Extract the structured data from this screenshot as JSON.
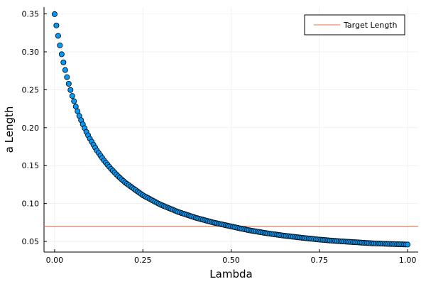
{
  "chart_data": {
    "type": "scatter",
    "title": "",
    "xlabel": "Lambda",
    "ylabel": "a Length",
    "xlim": [
      -0.03,
      1.03
    ],
    "ylim": [
      0.036,
      0.359
    ],
    "x_ticks": [
      0.0,
      0.25,
      0.5,
      0.75,
      1.0
    ],
    "x_tick_labels": [
      "0.00",
      "0.25",
      "0.50",
      "0.75",
      "1.00"
    ],
    "y_ticks": [
      0.05,
      0.1,
      0.15,
      0.2,
      0.25,
      0.3,
      0.35
    ],
    "y_tick_labels": [
      "0.05",
      "0.10",
      "0.15",
      "0.20",
      "0.25",
      "0.30",
      "0.35"
    ],
    "grid": true,
    "legend_position": "top-right",
    "series": [
      {
        "kind": "scatter",
        "name": "",
        "color": "#009AFA",
        "x": [
          0,
          0.005,
          0.01,
          0.015,
          0.02,
          0.025,
          0.03,
          0.035,
          0.04,
          0.045,
          0.05,
          0.06,
          0.07,
          0.08,
          0.09,
          0.1,
          0.12,
          0.14,
          0.16,
          0.18,
          0.2,
          0.25,
          0.3,
          0.35,
          0.4,
          0.45,
          0.5,
          0.55,
          0.6,
          0.65,
          0.7,
          0.75,
          0.8,
          0.85,
          0.9,
          0.95,
          1.0
        ],
        "y": [
          0.3497,
          0.3348,
          0.3211,
          0.3085,
          0.2968,
          0.2861,
          0.276,
          0.2666,
          0.2579,
          0.2497,
          0.2419,
          0.2279,
          0.2155,
          0.2044,
          0.1944,
          0.1854,
          0.1698,
          0.1567,
          0.1456,
          0.136,
          0.1276,
          0.1109,
          0.0985,
          0.0889,
          0.0812,
          0.0749,
          0.0698,
          0.0648,
          0.0609,
          0.0576,
          0.0549,
          0.0524,
          0.0505,
          0.049,
          0.0475,
          0.0467,
          0.0459
        ]
      },
      {
        "kind": "hline",
        "name": "Target Length",
        "color": "#E26F46",
        "y": 0.07
      }
    ]
  }
}
